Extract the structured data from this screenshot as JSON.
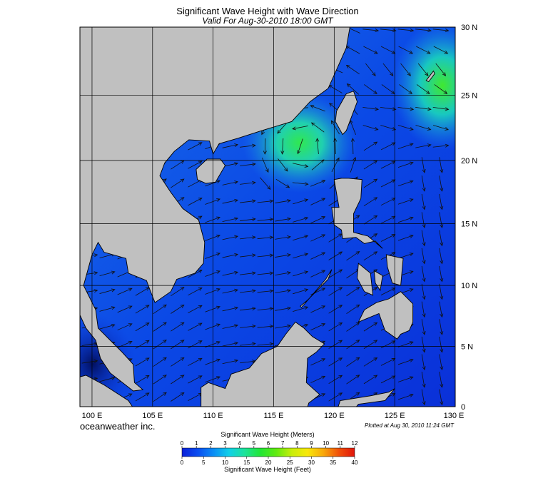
{
  "header": {
    "title": "Significant Wave Height with Wave Direction",
    "subtitle": "Valid For Aug-30-2010 18:00 GMT"
  },
  "map": {
    "lon_range": [
      99,
      130
    ],
    "lat_range": [
      0,
      30
    ],
    "lon_ticks": [
      {
        "value": 100,
        "label": "100 E"
      },
      {
        "value": 105,
        "label": "105 E"
      },
      {
        "value": 110,
        "label": "110 E"
      },
      {
        "value": 115,
        "label": "115 E"
      },
      {
        "value": 120,
        "label": "120 E"
      },
      {
        "value": 125,
        "label": "125 E"
      },
      {
        "value": 130,
        "label": "130 E"
      }
    ],
    "lat_ticks": [
      {
        "value": 30,
        "label": "30 N"
      },
      {
        "value": 25,
        "label": "25 N"
      },
      {
        "value": 20,
        "label": "20 N"
      },
      {
        "value": 15,
        "label": "15 N"
      },
      {
        "value": 10,
        "label": "10 N"
      },
      {
        "value": 5,
        "label": "5 N"
      },
      {
        "value": 0,
        "label": "0"
      }
    ]
  },
  "footer": {
    "brand": "oceanweather inc.",
    "plotted": "Plotted at Aug 30, 2010 11:24 GMT"
  },
  "colorbar": {
    "title_meters": "Significant Wave Height (Meters)",
    "title_feet": "Significant Wave Height (Feet)",
    "meters_ticks": [
      0,
      1,
      2,
      3,
      4,
      5,
      6,
      7,
      8,
      9,
      10,
      11,
      12
    ],
    "feet_ticks": [
      0,
      5,
      10,
      15,
      20,
      25,
      30,
      35,
      40
    ],
    "colors": [
      "#0a1fd8",
      "#0a4cf0",
      "#0a8cf5",
      "#10d0e8",
      "#1de39a",
      "#22e636",
      "#60ea10",
      "#c8ee0a",
      "#f8e80a",
      "#f8a80a",
      "#f0500a",
      "#e0140a"
    ]
  }
}
